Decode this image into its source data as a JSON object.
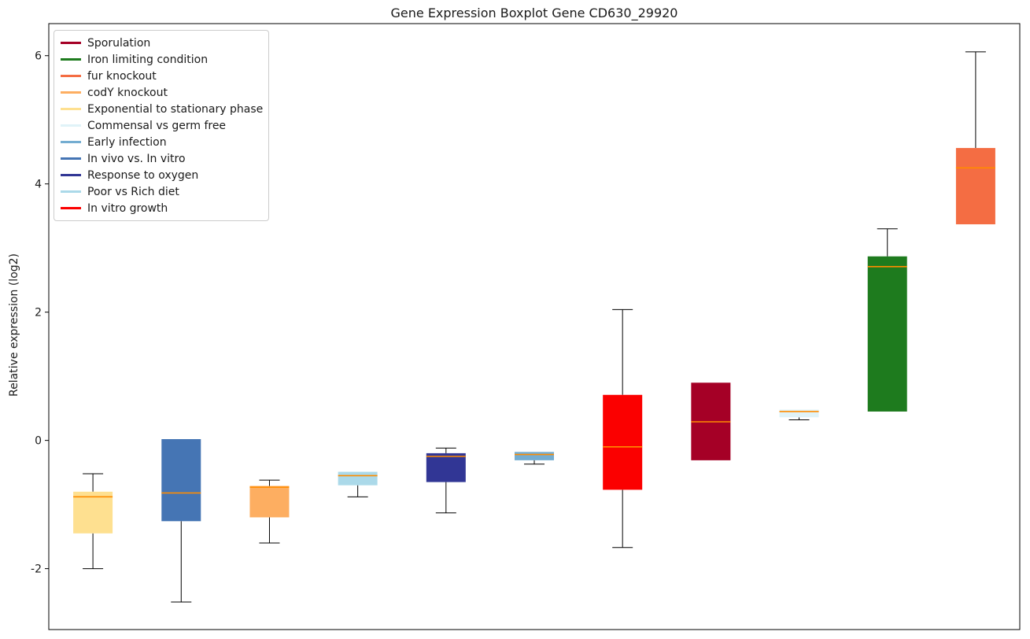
{
  "chart_data": {
    "type": "boxplot",
    "title": "Gene Expression Boxplot Gene CD630_29920",
    "ylabel": "Relative expression (log2)",
    "ylim": [
      -2.95,
      6.5
    ],
    "yticks": [
      -2,
      0,
      2,
      4,
      6
    ],
    "grid": false,
    "legend_position": "upper left",
    "median_color": "#ff8c00",
    "whisker_color": "#000000",
    "boxes": [
      {
        "label": "Exponential to stationary phase",
        "color": "#fee090",
        "whislo": -2.0,
        "q1": -1.45,
        "med": -0.88,
        "q3": -0.8,
        "whishi": -0.52
      },
      {
        "label": "In vivo vs. In vitro",
        "color": "#4575b4",
        "whislo": -2.52,
        "q1": -1.26,
        "med": -0.82,
        "q3": 0.02,
        "whishi": 0.02
      },
      {
        "label": "codY knockout",
        "color": "#fdae61",
        "whislo": -1.6,
        "q1": -1.2,
        "med": -0.73,
        "q3": -0.71,
        "whishi": -0.62
      },
      {
        "label": "Poor vs Rich diet",
        "color": "#abd9e9",
        "whislo": -0.88,
        "q1": -0.7,
        "med": -0.55,
        "q3": -0.49,
        "whishi": -0.49
      },
      {
        "label": "Response to oxygen",
        "color": "#313695",
        "whislo": -1.13,
        "q1": -0.65,
        "med": -0.25,
        "q3": -0.2,
        "whishi": -0.12
      },
      {
        "label": "Early infection",
        "color": "#74add1",
        "whislo": -0.37,
        "q1": -0.31,
        "med": -0.22,
        "q3": -0.18,
        "whishi": -0.18
      },
      {
        "label": "In vitro growth",
        "color": "#fb0000",
        "whislo": -1.67,
        "q1": -0.77,
        "med": -0.1,
        "q3": 0.71,
        "whishi": 2.04
      },
      {
        "label": "Sporulation",
        "color": "#a50026",
        "whislo": -0.31,
        "q1": -0.31,
        "med": 0.29,
        "q3": 0.9,
        "whishi": 0.9
      },
      {
        "label": "Commensal vs germ free",
        "color": "#e0f3f8",
        "whislo": 0.32,
        "q1": 0.36,
        "med": 0.45,
        "q3": 0.48,
        "whishi": 0.48
      },
      {
        "label": "Iron limiting condition",
        "color": "#1e7b1e",
        "whislo": 0.45,
        "q1": 0.45,
        "med": 2.71,
        "q3": 2.87,
        "whishi": 3.3
      },
      {
        "label": "fur knockout",
        "color": "#f46d43",
        "whislo": 3.37,
        "q1": 3.37,
        "med": 4.25,
        "q3": 4.56,
        "whishi": 6.06
      }
    ],
    "legend": [
      {
        "label": "Sporulation",
        "color": "#a50026"
      },
      {
        "label": "Iron limiting condition",
        "color": "#1e7b1e"
      },
      {
        "label": "fur knockout",
        "color": "#f46d43"
      },
      {
        "label": "codY knockout",
        "color": "#fdae61"
      },
      {
        "label": "Exponential to stationary phase",
        "color": "#fee090"
      },
      {
        "label": "Commensal vs germ free",
        "color": "#e0f3f8"
      },
      {
        "label": "Early infection",
        "color": "#74add1"
      },
      {
        "label": "In vivo vs. In vitro",
        "color": "#4575b4"
      },
      {
        "label": "Response to oxygen",
        "color": "#313695"
      },
      {
        "label": "Poor vs Rich diet",
        "color": "#abd9e9"
      },
      {
        "label": "In vitro growth",
        "color": "#fb0000"
      }
    ]
  }
}
